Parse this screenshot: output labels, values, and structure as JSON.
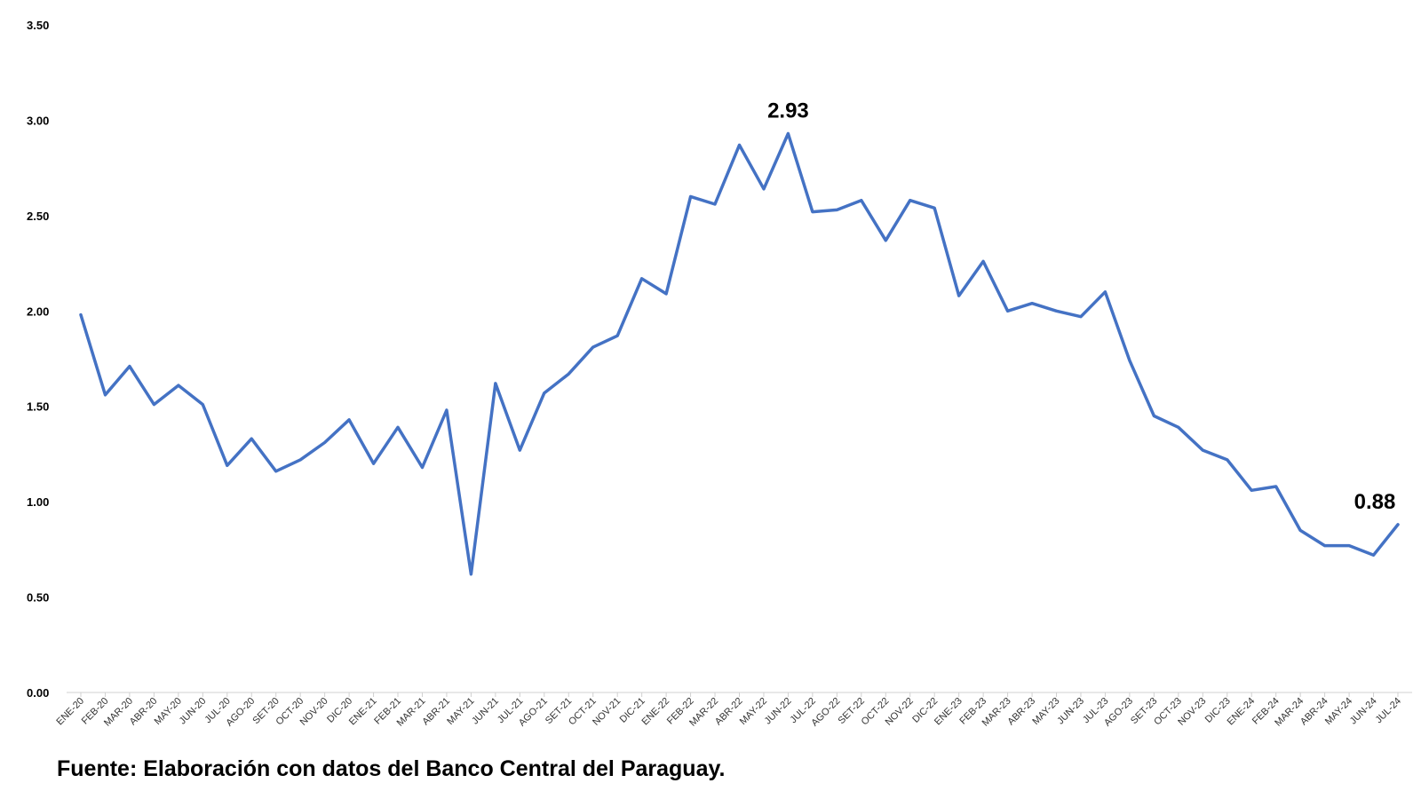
{
  "source_note": "Fuente: Elaboración con datos del Banco Central del Paraguay.",
  "colors": {
    "series": "#4472C4",
    "axis": "#d0d0d0"
  },
  "chart_data": {
    "type": "line",
    "title": "",
    "xlabel": "",
    "ylabel": "",
    "ylim": [
      0,
      3.5
    ],
    "yticks": [
      "0.00",
      "0.50",
      "1.00",
      "1.50",
      "2.00",
      "2.50",
      "3.00",
      "3.50"
    ],
    "grid": false,
    "legend": "none",
    "categories": [
      "ENE-20",
      "FEB-20",
      "MAR-20",
      "ABR-20",
      "MAY-20",
      "JUN-20",
      "JUL-20",
      "AGO-20",
      "SET-20",
      "OCT-20",
      "NOV-20",
      "DIC-20",
      "ENE-21",
      "FEB-21",
      "MAR-21",
      "ABR-21",
      "MAY-21",
      "JUN-21",
      "JUL-21",
      "AGO-21",
      "SET-21",
      "OCT-21",
      "NOV-21",
      "DIC-21",
      "ENE-22",
      "FEB-22",
      "MAR-22",
      "ABR-22",
      "MAY-22",
      "JUN-22",
      "JUL-22",
      "AGO-22",
      "SET-22",
      "OCT-22",
      "NOV-22",
      "DIC-22",
      "ENE-23",
      "FEB-23",
      "MAR-23",
      "ABR-23",
      "MAY-23",
      "JUN-23",
      "JUL-23",
      "AGO-23",
      "SET-23",
      "OCT-23",
      "NOV-23",
      "DIC-23",
      "ENE-24",
      "FEB-24",
      "MAR-24",
      "ABR-24",
      "MAY-24",
      "JUN-24",
      "JUL-24"
    ],
    "series": [
      {
        "values": [
          1.98,
          1.56,
          1.71,
          1.51,
          1.61,
          1.51,
          1.19,
          1.33,
          1.16,
          1.22,
          1.31,
          1.43,
          1.2,
          1.39,
          1.18,
          1.48,
          0.62,
          1.62,
          1.27,
          1.57,
          1.67,
          1.81,
          1.87,
          2.17,
          2.09,
          2.6,
          2.56,
          2.87,
          2.64,
          2.93,
          2.52,
          2.53,
          2.58,
          2.37,
          2.58,
          2.54,
          2.08,
          2.26,
          2.0,
          2.04,
          2.0,
          1.97,
          2.1,
          1.74,
          1.45,
          1.39,
          1.27,
          1.22,
          1.06,
          1.08,
          0.85,
          0.77,
          0.77,
          0.72,
          0.88
        ]
      }
    ],
    "data_labels": [
      {
        "index": 29,
        "text": "2.93"
      },
      {
        "index": 54,
        "text": "0.88"
      }
    ]
  }
}
